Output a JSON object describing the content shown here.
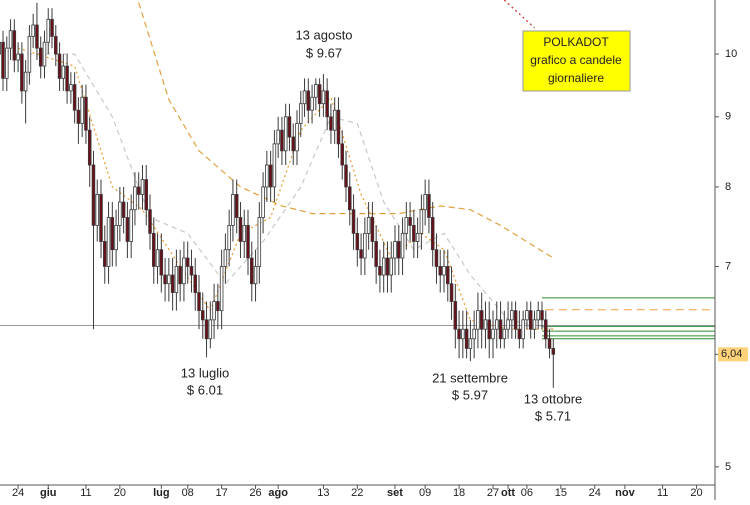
{
  "chart_data": {
    "type": "candlestick",
    "title": [
      "POLKADOT",
      "grafico a candele",
      "giornaliere"
    ],
    "annotations": [
      [
        "13 agosto",
        "$ 9.67"
      ],
      [
        "13 luglio",
        "$ 6.01"
      ],
      [
        "21 settembre",
        "$ 5.97"
      ],
      [
        "13 ottobre",
        "$ 5.71"
      ]
    ],
    "log_scale": true,
    "xlim": [
      0.2,
      189.9
    ],
    "ylim": [
      4.85,
      10.95
    ],
    "yticks": [
      5,
      7,
      8,
      9,
      10
    ],
    "last_price": {
      "value": 6.04,
      "label": "6,04"
    },
    "xticks": [
      {
        "value": 5,
        "label": "24"
      },
      {
        "value": 13,
        "label": "giu"
      },
      {
        "value": 23,
        "label": "11"
      },
      {
        "value": 32,
        "label": "20"
      },
      {
        "value": 43,
        "label": "lug"
      },
      {
        "value": 50,
        "label": "08"
      },
      {
        "value": 59,
        "label": "17"
      },
      {
        "value": 68,
        "label": "26"
      },
      {
        "value": 74,
        "label": "ago"
      },
      {
        "value": 86,
        "label": "13"
      },
      {
        "value": 95,
        "label": "22"
      },
      {
        "value": 105,
        "label": "set"
      },
      {
        "value": 113,
        "label": "09"
      },
      {
        "value": 122,
        "label": "18"
      },
      {
        "value": 131,
        "label": "27"
      },
      {
        "value": 135,
        "label": "ott"
      },
      {
        "value": 140,
        "label": "06"
      },
      {
        "value": 149,
        "label": "15"
      },
      {
        "value": 158,
        "label": "24"
      },
      {
        "value": 166,
        "label": "nov"
      },
      {
        "value": 176,
        "label": "11"
      },
      {
        "value": 185,
        "label": "20"
      }
    ],
    "up_color": "#ffffff",
    "down_color": "#6b0f1a",
    "outline_color": "#3a3a3a",
    "x": [
      0,
      1,
      2,
      3,
      4,
      5,
      6,
      7,
      8,
      9,
      10,
      11,
      12,
      13,
      14,
      15,
      16,
      17,
      18,
      19,
      20,
      21,
      22,
      23,
      24,
      25,
      26,
      27,
      28,
      29,
      30,
      31,
      32,
      33,
      34,
      35,
      36,
      37,
      38,
      39,
      40,
      41,
      42,
      43,
      44,
      45,
      46,
      47,
      48,
      49,
      50,
      51,
      52,
      53,
      54,
      55,
      56,
      57,
      58,
      59,
      60,
      61,
      62,
      63,
      64,
      65,
      66,
      67,
      68,
      69,
      70,
      71,
      72,
      73,
      74,
      75,
      76,
      77,
      78,
      79,
      80,
      81,
      82,
      83,
      84,
      85,
      86,
      87,
      88,
      89,
      90,
      91,
      92,
      93,
      94,
      95,
      96,
      97,
      98,
      99,
      100,
      101,
      102,
      103,
      104,
      105,
      106,
      107,
      108,
      109,
      110,
      111,
      112,
      113,
      114,
      115,
      116,
      117,
      118,
      119,
      120,
      121,
      122,
      123,
      124,
      125,
      126,
      127,
      128,
      129,
      130,
      131,
      132,
      133,
      134,
      135,
      136,
      137,
      138,
      139,
      140,
      141,
      142,
      143,
      144,
      145,
      146,
      147
    ],
    "open": [
      10.0,
      10.2,
      9.6,
      10.1,
      10.4,
      9.9,
      10.0,
      9.4,
      9.7,
      10.3,
      10.5,
      10.1,
      9.8,
      10.2,
      10.6,
      10.3,
      10.0,
      9.6,
      9.8,
      9.4,
      9.5,
      9.1,
      8.9,
      9.3,
      8.8,
      8.3,
      7.5,
      7.9,
      7.3,
      7.0,
      7.6,
      7.2,
      7.5,
      7.8,
      7.6,
      7.3,
      7.7,
      8.0,
      7.9,
      8.1,
      7.7,
      7.4,
      7.0,
      7.2,
      6.9,
      6.8,
      6.9,
      6.7,
      7.0,
      6.8,
      7.1,
      7.0,
      6.9,
      6.7,
      6.5,
      6.4,
      6.2,
      6.4,
      6.6,
      6.5,
      7.0,
      7.2,
      7.5,
      7.9,
      7.6,
      7.3,
      7.5,
      7.1,
      6.8,
      7.0,
      7.6,
      8.0,
      8.3,
      8.0,
      8.6,
      8.8,
      8.5,
      9.0,
      8.7,
      8.5,
      8.9,
      9.2,
      9.4,
      9.1,
      9.3,
      9.5,
      9.2,
      9.4,
      9.0,
      8.8,
      9.1,
      8.6,
      8.3,
      8.0,
      7.7,
      7.4,
      7.2,
      7.1,
      7.4,
      7.6,
      7.3,
      7.0,
      6.9,
      7.1,
      6.9,
      7.1,
      7.3,
      7.1,
      7.4,
      7.6,
      7.5,
      7.3,
      7.4,
      7.7,
      7.9,
      7.6,
      7.2,
      7.0,
      6.9,
      7.0,
      6.8,
      6.6,
      6.3,
      6.2,
      6.3,
      6.1,
      6.2,
      6.3,
      6.5,
      6.3,
      6.4,
      6.2,
      6.3,
      6.4,
      6.2,
      6.3,
      6.4,
      6.5,
      6.3,
      6.2,
      6.4,
      6.5,
      6.3,
      6.4,
      6.5,
      6.4,
      6.2,
      6.1
    ],
    "high": [
      10.4,
      10.4,
      10.3,
      10.6,
      10.6,
      10.2,
      10.2,
      9.9,
      10.5,
      10.7,
      10.9,
      10.3,
      10.4,
      10.8,
      10.8,
      10.5,
      10.2,
      10.0,
      10.0,
      9.7,
      9.7,
      9.3,
      9.5,
      9.5,
      9.0,
      8.5,
      8.1,
      8.1,
      7.5,
      7.8,
      7.8,
      7.7,
      8.0,
      8.0,
      7.8,
      7.9,
      8.2,
      8.2,
      8.3,
      8.3,
      7.9,
      7.6,
      7.4,
      7.4,
      7.1,
      7.1,
      7.1,
      7.2,
      7.2,
      7.3,
      7.3,
      7.2,
      7.1,
      6.9,
      6.7,
      6.6,
      6.6,
      6.8,
      6.8,
      7.2,
      7.4,
      7.7,
      8.1,
      8.1,
      7.8,
      7.7,
      7.7,
      7.3,
      7.2,
      7.8,
      8.2,
      8.5,
      8.5,
      8.8,
      9.0,
      9.0,
      9.2,
      9.2,
      8.9,
      9.1,
      9.4,
      9.6,
      9.6,
      9.5,
      9.6,
      9.6,
      9.67,
      9.6,
      9.2,
      9.3,
      9.3,
      8.8,
      8.5,
      8.2,
      7.9,
      7.6,
      7.4,
      7.6,
      7.8,
      7.8,
      7.5,
      7.2,
      7.3,
      7.3,
      7.3,
      7.5,
      7.5,
      7.6,
      7.8,
      7.8,
      7.7,
      7.6,
      7.9,
      8.1,
      8.1,
      7.8,
      7.4,
      7.2,
      7.2,
      7.2,
      7.0,
      6.8,
      6.5,
      6.5,
      6.5,
      6.4,
      6.5,
      6.7,
      6.7,
      6.6,
      6.6,
      6.5,
      6.6,
      6.6,
      6.5,
      6.6,
      6.6,
      6.6,
      6.5,
      6.5,
      6.6,
      6.6,
      6.5,
      6.6,
      6.6,
      6.5,
      6.3,
      6.2
    ],
    "low": [
      9.8,
      9.4,
      9.4,
      9.9,
      9.7,
      9.7,
      9.2,
      8.9,
      9.5,
      10.1,
      9.9,
      9.6,
      9.6,
      10.0,
      10.1,
      9.8,
      9.4,
      9.4,
      9.2,
      9.2,
      8.9,
      8.6,
      8.7,
      8.6,
      8.0,
      6.3,
      7.3,
      7.1,
      6.8,
      6.8,
      7.0,
      7.0,
      7.3,
      7.4,
      7.1,
      7.1,
      7.5,
      7.7,
      7.7,
      7.5,
      7.2,
      6.8,
      6.8,
      6.7,
      6.6,
      6.6,
      6.5,
      6.5,
      6.6,
      6.6,
      6.8,
      6.7,
      6.5,
      6.3,
      6.2,
      6.01,
      6.1,
      6.2,
      6.3,
      6.3,
      6.8,
      7.0,
      7.3,
      7.4,
      7.1,
      7.1,
      6.9,
      6.6,
      6.6,
      6.8,
      7.4,
      7.8,
      7.8,
      7.8,
      8.4,
      8.3,
      8.3,
      8.5,
      8.3,
      8.3,
      8.7,
      9.0,
      8.9,
      8.9,
      9.1,
      9.0,
      9.0,
      8.8,
      8.6,
      8.6,
      8.4,
      8.1,
      7.8,
      7.5,
      7.2,
      7.0,
      6.9,
      6.9,
      7.2,
      7.1,
      6.8,
      6.7,
      6.7,
      6.7,
      6.7,
      6.9,
      6.9,
      6.9,
      7.2,
      7.3,
      7.1,
      7.1,
      7.2,
      7.5,
      7.4,
      7.0,
      6.8,
      6.7,
      6.7,
      6.6,
      6.4,
      6.1,
      6.0,
      6.0,
      6.0,
      5.97,
      6.0,
      6.1,
      6.1,
      6.1,
      6.0,
      6.0,
      6.1,
      6.1,
      6.1,
      6.2,
      6.2,
      6.2,
      6.1,
      6.1,
      6.3,
      6.2,
      6.2,
      6.3,
      6.3,
      6.1,
      6.0,
      5.71
    ],
    "close": [
      10.2,
      9.6,
      10.1,
      10.4,
      9.9,
      10.0,
      9.4,
      9.7,
      10.3,
      10.5,
      10.1,
      9.8,
      10.2,
      10.6,
      10.3,
      10.0,
      9.6,
      9.8,
      9.4,
      9.5,
      9.1,
      8.9,
      9.3,
      8.8,
      8.3,
      7.5,
      7.9,
      7.3,
      7.0,
      7.6,
      7.2,
      7.5,
      7.8,
      7.6,
      7.3,
      7.7,
      8.0,
      7.9,
      8.1,
      7.7,
      7.4,
      7.0,
      7.2,
      6.9,
      6.8,
      6.9,
      6.7,
      7.0,
      6.8,
      7.1,
      7.0,
      6.9,
      6.7,
      6.5,
      6.4,
      6.2,
      6.4,
      6.6,
      6.5,
      7.0,
      7.2,
      7.5,
      7.9,
      7.6,
      7.3,
      7.5,
      7.1,
      6.8,
      7.0,
      7.6,
      8.0,
      8.3,
      8.0,
      8.6,
      8.8,
      8.5,
      9.0,
      8.7,
      8.5,
      8.9,
      9.2,
      9.4,
      9.1,
      9.3,
      9.5,
      9.2,
      9.4,
      9.0,
      8.8,
      9.1,
      8.6,
      8.3,
      8.0,
      7.7,
      7.4,
      7.2,
      7.1,
      7.4,
      7.6,
      7.3,
      7.0,
      6.9,
      7.1,
      6.9,
      7.1,
      7.3,
      7.1,
      7.4,
      7.6,
      7.5,
      7.3,
      7.4,
      7.7,
      7.9,
      7.6,
      7.2,
      7.0,
      6.9,
      7.0,
      6.8,
      6.6,
      6.3,
      6.2,
      6.3,
      6.1,
      6.2,
      6.3,
      6.5,
      6.3,
      6.4,
      6.2,
      6.3,
      6.4,
      6.2,
      6.3,
      6.4,
      6.5,
      6.3,
      6.2,
      6.4,
      6.5,
      6.3,
      6.4,
      6.5,
      6.4,
      6.2,
      6.1,
      6.04
    ],
    "lines": [
      {
        "color": "#e0a040",
        "dash": "6 4",
        "x": [
          37,
          45,
          53,
          64,
          75,
          83,
          93,
          106,
          117,
          125,
          133,
          147
        ],
        "values": [
          10.9,
          9.26,
          8.5,
          8.0,
          7.75,
          7.65,
          7.65,
          7.65,
          7.75,
          7.7,
          7.5,
          7.1
        ]
      },
      {
        "color": "#c8c8c8",
        "dash": "5 4",
        "x": [
          5,
          20,
          30,
          40,
          50,
          60,
          70,
          80,
          88,
          95,
          102,
          110,
          118,
          125,
          135,
          147
        ],
        "values": [
          10.0,
          10.0,
          9.0,
          7.6,
          7.4,
          6.8,
          7.3,
          8.0,
          9.0,
          8.9,
          7.8,
          7.2,
          7.4,
          6.9,
          6.4,
          6.3
        ]
      },
      {
        "color": "#e89a30",
        "dash": "2 3",
        "x": [
          5,
          20,
          30,
          38,
          48,
          56,
          64,
          72,
          80,
          88,
          96,
          104,
          112,
          118,
          125,
          135,
          147
        ],
        "values": [
          10.1,
          9.8,
          8.0,
          7.7,
          7.0,
          6.5,
          7.4,
          7.6,
          8.8,
          9.3,
          7.9,
          7.1,
          7.4,
          7.2,
          6.4,
          6.3,
          6.3
        ]
      },
      {
        "color": "#c03030",
        "dash": "2 3",
        "x": [
          134,
          142
        ],
        "values": [
          10.95,
          10.45
        ]
      }
    ],
    "levels": [
      {
        "value": 6.34,
        "color": "#9a9a9a",
        "dash": "none",
        "from": 0.2
      },
      {
        "value": 6.64,
        "color": "#2e8b2e",
        "dash": "none",
        "from": 144
      },
      {
        "value": 6.51,
        "color": "#f0a040",
        "dash": "8 5",
        "from": 145
      },
      {
        "value": 6.33,
        "color": "#2e8b2e",
        "dash": "none",
        "from": 144
      },
      {
        "value": 6.28,
        "color": "#2e8b2e",
        "dash": "none",
        "from": 144
      },
      {
        "value": 6.23,
        "color": "#2e8b2e",
        "dash": "none",
        "from": 144
      },
      {
        "value": 6.2,
        "color": "#2e8b2e",
        "dash": "none",
        "from": 144
      }
    ]
  }
}
